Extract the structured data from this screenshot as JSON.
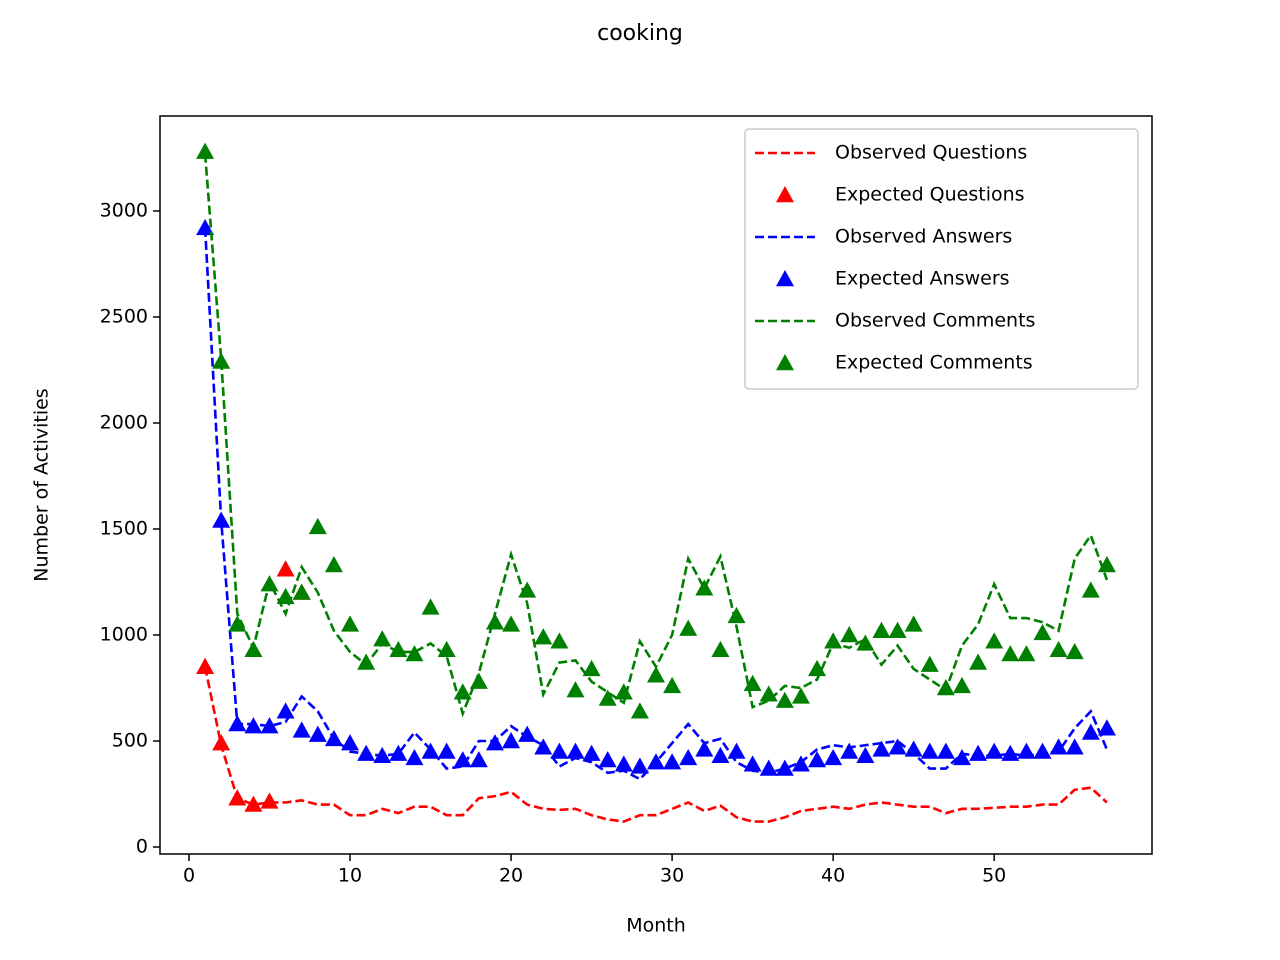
{
  "chart_data": {
    "type": "line",
    "title": "cooking",
    "x_label": "Month",
    "y_label": "Number of Activities",
    "x": [
      1,
      2,
      3,
      4,
      5,
      6,
      7,
      8,
      9,
      10,
      11,
      12,
      13,
      14,
      15,
      16,
      17,
      18,
      19,
      20,
      21,
      22,
      23,
      24,
      25,
      26,
      27,
      28,
      29,
      30,
      31,
      32,
      33,
      34,
      35,
      36,
      37,
      38,
      39,
      40,
      41,
      42,
      43,
      44,
      45,
      46,
      47,
      48,
      49,
      50,
      51,
      52,
      53,
      54,
      55,
      56,
      57
    ],
    "series": [
      {
        "name": "Observed Questions",
        "color": "#ff0000",
        "style": "dashed",
        "values": [
          850,
          480,
          230,
          200,
          210,
          210,
          220,
          200,
          200,
          150,
          150,
          180,
          160,
          190,
          190,
          150,
          150,
          230,
          240,
          260,
          200,
          180,
          175,
          180,
          150,
          130,
          120,
          150,
          150,
          180,
          210,
          170,
          195,
          140,
          120,
          120,
          140,
          170,
          180,
          190,
          180,
          200,
          210,
          200,
          190,
          190,
          160,
          180,
          180,
          185,
          190,
          190,
          200,
          200,
          270,
          280,
          210
        ]
      },
      {
        "name": "Expected Questions",
        "color": "#ff0000",
        "style": "triangle",
        "values": [
          850,
          490,
          230,
          200,
          215,
          1310,
          1200,
          null,
          null,
          null,
          null,
          null,
          null,
          null,
          null,
          null,
          null,
          null,
          null,
          null,
          null,
          null,
          null,
          null,
          null,
          null,
          null,
          null,
          null,
          null,
          null,
          null,
          null,
          null,
          null,
          null,
          null,
          null,
          null,
          null,
          null,
          null,
          null,
          null,
          null,
          null,
          null,
          null,
          null,
          null,
          null,
          null,
          null,
          null,
          null,
          null,
          null
        ]
      },
      {
        "name": "Observed Answers",
        "color": "#0000ff",
        "style": "dashed",
        "values": [
          2920,
          1540,
          580,
          580,
          570,
          590,
          710,
          640,
          510,
          450,
          440,
          430,
          440,
          540,
          460,
          370,
          380,
          500,
          500,
          570,
          520,
          480,
          380,
          420,
          400,
          350,
          360,
          320,
          400,
          490,
          580,
          490,
          510,
          400,
          360,
          350,
          370,
          400,
          460,
          480,
          470,
          480,
          490,
          500,
          440,
          370,
          370,
          440,
          430,
          430,
          440,
          430,
          440,
          450,
          560,
          640,
          460
        ]
      },
      {
        "name": "Expected Answers",
        "color": "#0000ff",
        "style": "triangle",
        "values": [
          2920,
          1540,
          580,
          570,
          570,
          640,
          550,
          530,
          510,
          490,
          440,
          430,
          440,
          420,
          450,
          450,
          410,
          410,
          490,
          500,
          530,
          470,
          450,
          450,
          440,
          410,
          390,
          380,
          400,
          400,
          420,
          460,
          430,
          450,
          390,
          370,
          370,
          390,
          410,
          420,
          450,
          430,
          460,
          470,
          460,
          450,
          450,
          420,
          440,
          450,
          440,
          450,
          450,
          470,
          470,
          540,
          560
        ]
      },
      {
        "name": "Observed Comments",
        "color": "#008000",
        "style": "dashed",
        "values": [
          3270,
          2300,
          1100,
          940,
          1250,
          1100,
          1320,
          1200,
          1020,
          920,
          860,
          960,
          920,
          920,
          960,
          900,
          630,
          820,
          1100,
          1380,
          1150,
          720,
          870,
          880,
          780,
          730,
          680,
          970,
          850,
          1000,
          1360,
          1220,
          1370,
          1040,
          660,
          690,
          760,
          750,
          790,
          960,
          940,
          980,
          860,
          950,
          840,
          790,
          740,
          950,
          1050,
          1240,
          1080,
          1080,
          1060,
          1020,
          1360,
          1470,
          1260
        ]
      },
      {
        "name": "Expected Comments",
        "color": "#008000",
        "style": "triangle",
        "values": [
          3280,
          2290,
          1050,
          930,
          1240,
          1180,
          1200,
          1510,
          1330,
          1050,
          870,
          980,
          930,
          910,
          1130,
          930,
          730,
          780,
          1060,
          1050,
          1210,
          990,
          970,
          740,
          840,
          700,
          730,
          640,
          810,
          760,
          1030,
          1220,
          930,
          1090,
          770,
          720,
          690,
          710,
          840,
          970,
          1000,
          960,
          1020,
          1020,
          1050,
          860,
          750,
          760,
          870,
          970,
          910,
          910,
          1010,
          930,
          920,
          1210,
          1330
        ]
      }
    ],
    "xlim": [
      -1.8,
      59.8
    ],
    "ylim": [
      -33,
      3448
    ],
    "xticks": [
      0,
      10,
      20,
      30,
      40,
      50
    ],
    "yticks": [
      0,
      500,
      1000,
      1500,
      2000,
      2500,
      3000
    ],
    "legend": "upper right"
  }
}
